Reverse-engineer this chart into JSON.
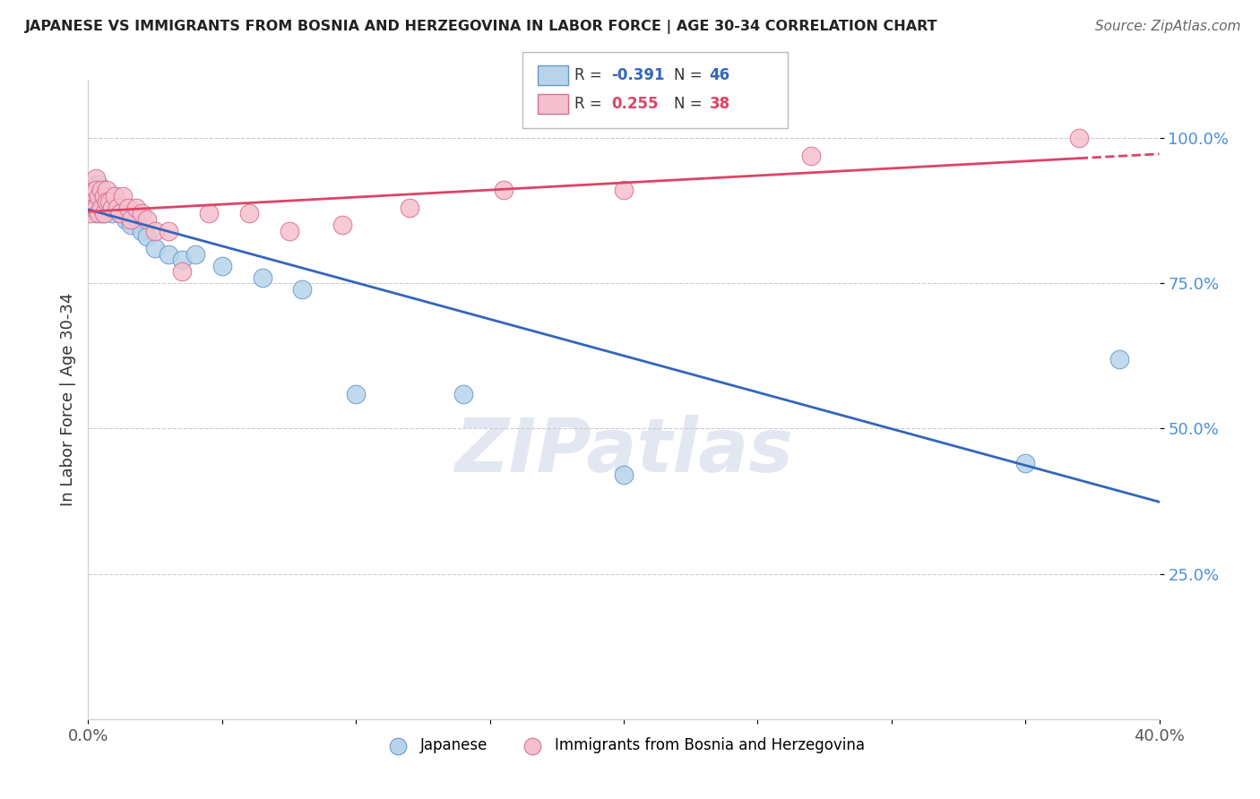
{
  "title": "JAPANESE VS IMMIGRANTS FROM BOSNIA AND HERZEGOVINA IN LABOR FORCE | AGE 30-34 CORRELATION CHART",
  "source": "Source: ZipAtlas.com",
  "ylabel": "In Labor Force | Age 30-34",
  "xlim": [
    0.0,
    0.4
  ],
  "ylim": [
    0.0,
    1.1
  ],
  "xticks": [
    0.0,
    0.05,
    0.1,
    0.15,
    0.2,
    0.25,
    0.3,
    0.35,
    0.4
  ],
  "yticks": [
    0.25,
    0.5,
    0.75,
    1.0
  ],
  "yticklabels": [
    "25.0%",
    "50.0%",
    "75.0%",
    "100.0%"
  ],
  "blue_color": "#b8d4ea",
  "blue_edge": "#6699cc",
  "pink_color": "#f5c0ce",
  "pink_edge": "#d97090",
  "blue_line_color": "#3366bb",
  "pink_line_color": "#dd4466",
  "watermark": "ZIPatlas",
  "background_color": "#ffffff",
  "grid_color": "#cccccc",
  "blue_x": [
    0.001,
    0.001,
    0.002,
    0.002,
    0.002,
    0.003,
    0.003,
    0.003,
    0.004,
    0.004,
    0.004,
    0.005,
    0.005,
    0.005,
    0.006,
    0.006,
    0.006,
    0.007,
    0.007,
    0.008,
    0.008,
    0.009,
    0.009,
    0.01,
    0.01,
    0.011,
    0.012,
    0.013,
    0.014,
    0.015,
    0.016,
    0.018,
    0.02,
    0.022,
    0.025,
    0.03,
    0.035,
    0.04,
    0.05,
    0.065,
    0.08,
    0.1,
    0.14,
    0.2,
    0.35,
    0.385
  ],
  "blue_y": [
    0.91,
    0.89,
    0.92,
    0.9,
    0.88,
    0.91,
    0.89,
    0.87,
    0.92,
    0.9,
    0.88,
    0.91,
    0.89,
    0.87,
    0.9,
    0.88,
    0.87,
    0.9,
    0.88,
    0.9,
    0.88,
    0.89,
    0.87,
    0.9,
    0.88,
    0.88,
    0.87,
    0.88,
    0.86,
    0.87,
    0.85,
    0.86,
    0.84,
    0.83,
    0.81,
    0.8,
    0.79,
    0.8,
    0.78,
    0.76,
    0.74,
    0.56,
    0.56,
    0.42,
    0.44,
    0.62
  ],
  "pink_x": [
    0.001,
    0.001,
    0.002,
    0.002,
    0.003,
    0.003,
    0.003,
    0.004,
    0.004,
    0.005,
    0.005,
    0.006,
    0.006,
    0.007,
    0.007,
    0.008,
    0.009,
    0.01,
    0.011,
    0.012,
    0.013,
    0.015,
    0.016,
    0.018,
    0.02,
    0.022,
    0.025,
    0.03,
    0.035,
    0.045,
    0.06,
    0.075,
    0.095,
    0.12,
    0.155,
    0.2,
    0.27,
    0.37
  ],
  "pink_y": [
    0.89,
    0.87,
    0.9,
    0.88,
    0.93,
    0.91,
    0.88,
    0.9,
    0.87,
    0.91,
    0.88,
    0.9,
    0.87,
    0.91,
    0.89,
    0.89,
    0.88,
    0.9,
    0.88,
    0.87,
    0.9,
    0.88,
    0.86,
    0.88,
    0.87,
    0.86,
    0.84,
    0.84,
    0.77,
    0.87,
    0.87,
    0.84,
    0.85,
    0.88,
    0.91,
    0.91,
    0.97,
    1.0
  ]
}
